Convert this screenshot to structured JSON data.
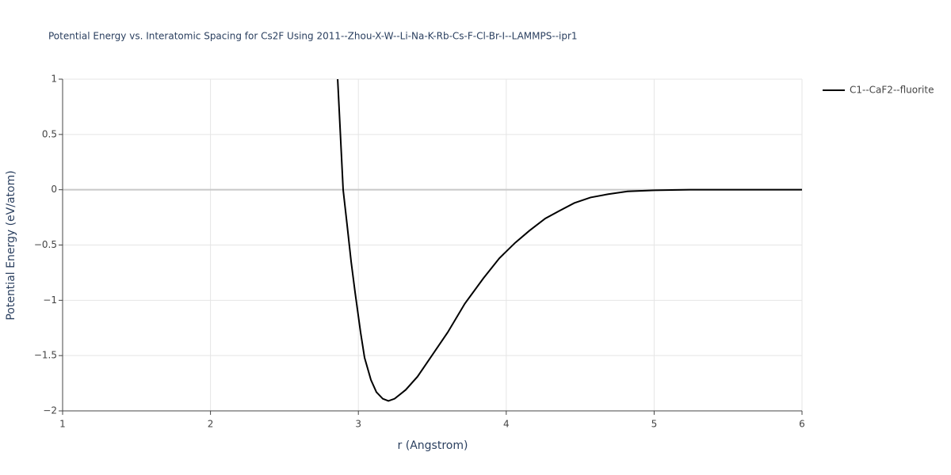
{
  "chart_data": {
    "type": "line",
    "title": "Potential Energy vs. Interatomic Spacing for Cs2F Using 2011--Zhou-X-W--Li-Na-K-Rb-Cs-F-Cl-Br-I--LAMMPS--ipr1",
    "x_label": "r (Angstrom)",
    "y_label": "Potential Energy (eV/atom)",
    "x": [
      2.86,
      2.897,
      2.924,
      2.951,
      2.978,
      3.015,
      3.042,
      3.085,
      3.122,
      3.165,
      3.203,
      3.245,
      3.32,
      3.4,
      3.497,
      3.604,
      3.72,
      3.846,
      3.953,
      4.06,
      4.157,
      4.264,
      4.36,
      4.46,
      4.57,
      4.69,
      4.82,
      5.0,
      5.24,
      6.0
    ],
    "series": [
      {
        "name": "C1--CaF2--fluorite",
        "color": "#000000",
        "values": [
          1,
          0,
          -0.32,
          -0.65,
          -0.93,
          -1.29,
          -1.52,
          -1.72,
          -1.83,
          -1.89,
          -1.91,
          -1.89,
          -1.81,
          -1.69,
          -1.5,
          -1.29,
          -1.03,
          -0.8,
          -0.62,
          -0.48,
          -0.37,
          -0.26,
          -0.19,
          -0.12,
          -0.07,
          -0.04,
          -0.015,
          -0.005,
          0,
          0
        ]
      }
    ],
    "xlim": [
      1,
      6
    ],
    "ylim": [
      -2,
      1
    ],
    "xticks": [
      1,
      2,
      3,
      4,
      5,
      6
    ],
    "yticks": [
      {
        "value": -2,
        "label": "−2"
      },
      {
        "value": -1.5,
        "label": "−1.5"
      },
      {
        "value": -1,
        "label": "−1"
      },
      {
        "value": -0.5,
        "label": "−0.5"
      },
      0,
      0.5,
      1
    ],
    "grid": true,
    "legend": "right"
  }
}
